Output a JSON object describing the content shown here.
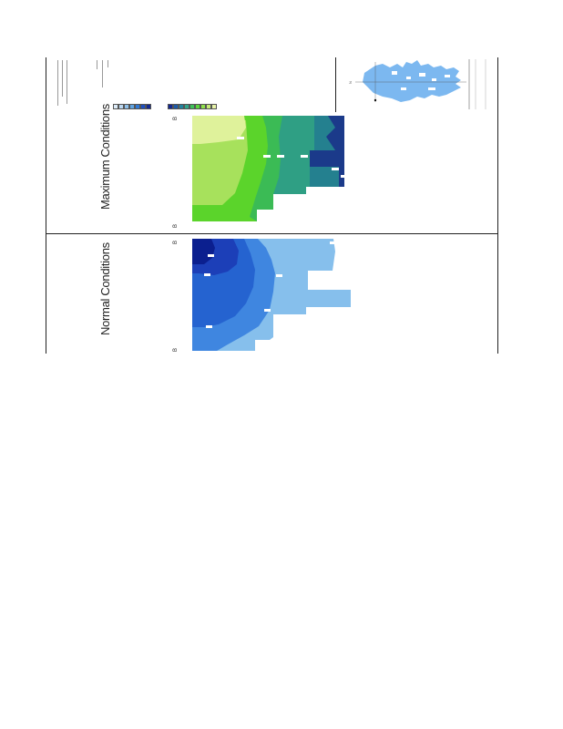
{
  "panels": {
    "normal": {
      "title": "Normal Conditions",
      "edge_left": "B",
      "edge_right": "B"
    },
    "maximum": {
      "title": "Maximum Conditions",
      "edge_left": "B",
      "edge_right": "B"
    }
  },
  "legend_normal_colors": [
    "#dcebf8",
    "#bcd8f1",
    "#8fc0ea",
    "#5ea3e2",
    "#2e78d6",
    "#1d4fbf",
    "#13288f"
  ],
  "legend_max_colors": [
    "#13288f",
    "#1c5aa8",
    "#22829e",
    "#2fa58a",
    "#3ec25a",
    "#5ad63c",
    "#8ee04c",
    "#c6ea78",
    "#e7f3a8"
  ],
  "colors": {
    "normal_bands": [
      "#0b1f8f",
      "#1c3fb8",
      "#2563d0",
      "#3f86e0",
      "#86bfec"
    ],
    "max_bands": [
      "#dff29b",
      "#a7e15c",
      "#5bd42b",
      "#3bbb55",
      "#2f9f84",
      "#24808f",
      "#1b3a8a"
    ],
    "frame": "#222222",
    "inset_land": "#7cb8f0"
  },
  "inset_map": {
    "north_arrow": "N"
  }
}
